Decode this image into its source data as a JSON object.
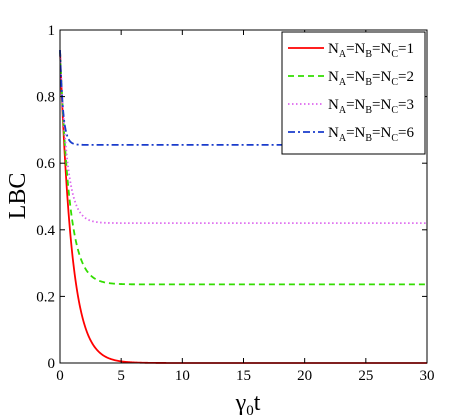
{
  "chart_data": {
    "type": "line",
    "xlabel": "γ",
    "xlabel_sub": "0",
    "xlabel_suffix": "t",
    "ylabel": "LBC",
    "xlim": [
      0,
      30
    ],
    "ylim": [
      0,
      1
    ],
    "xticks": [
      0,
      5,
      10,
      15,
      20,
      25,
      30
    ],
    "yticks": [
      0,
      0.2,
      0.4,
      0.6,
      0.8,
      1
    ],
    "ytick_labels": [
      "0",
      "0.2",
      "0.4",
      "0.6",
      "0.8",
      "1"
    ],
    "grid": false,
    "legend_position": "top-right",
    "series": [
      {
        "name": "N_A=N_B=N_C=1",
        "label_parts": [
          "N",
          "A",
          "=N",
          "B",
          "=N",
          "C",
          "=1"
        ],
        "color": "#ff0000",
        "style": "solid",
        "start": 0.94,
        "steady": 0.0,
        "rate": 1.05
      },
      {
        "name": "N_A=N_B=N_C=2",
        "label_parts": [
          "N",
          "A",
          "=N",
          "B",
          "=N",
          "C",
          "=2"
        ],
        "color": "#33dd00",
        "style": "dashed",
        "start": 0.94,
        "steady": 0.236,
        "rate": 1.3
      },
      {
        "name": "N_A=N_B=N_C=3",
        "label_parts": [
          "N",
          "A",
          "=N",
          "B",
          "=N",
          "C",
          "=3"
        ],
        "color": "#dd66ee",
        "style": "dotted",
        "start": 0.94,
        "steady": 0.42,
        "rate": 1.7
      },
      {
        "name": "N_A=N_B=N_C=6",
        "label_parts": [
          "N",
          "A",
          "=N",
          "B",
          "=N",
          "C",
          "=6"
        ],
        "color": "#1a3ccc",
        "style": "dashdot",
        "start": 0.94,
        "steady": 0.655,
        "rate": 4.0
      }
    ]
  }
}
